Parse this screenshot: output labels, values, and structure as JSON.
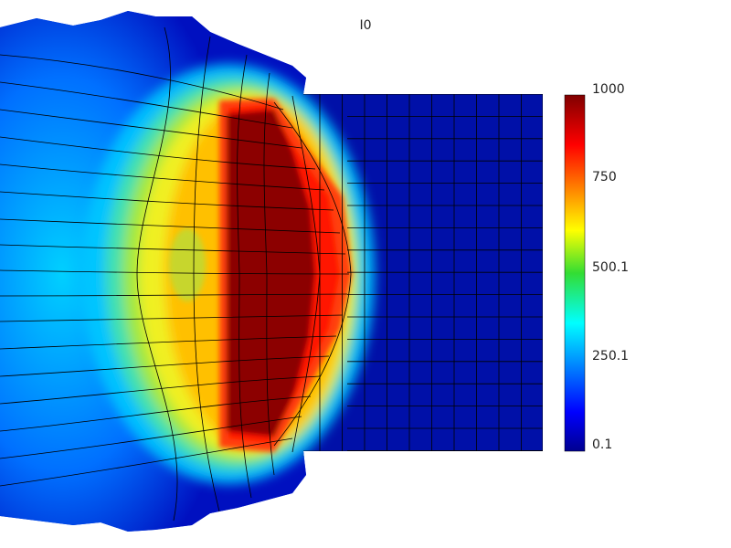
{
  "title": "I0",
  "colorbar": {
    "min_label": "0.1",
    "tick_250": "250.1",
    "tick_500": "500.1",
    "tick_750": "750",
    "max_label": "1000",
    "colormap": "jet"
  },
  "colors": {
    "background": "#ffffff",
    "mesh_lines": "#000000",
    "low": "#00008f",
    "high": "#800000"
  }
}
